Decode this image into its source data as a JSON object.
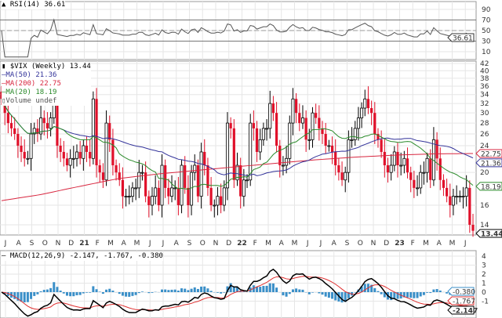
{
  "chart_data": [
    {
      "type": "line",
      "title": "RSI(14) 36.61",
      "indicator": "RSI(14)",
      "last_value": "36.61",
      "ylim": [
        0,
        100
      ],
      "y_ticks": [
        "90",
        "70",
        "50",
        "30",
        "10"
      ],
      "reference_lines": [
        70,
        30
      ],
      "grid": true
    },
    {
      "type": "candlestick",
      "title": "$VIX (Weekly) 13.44",
      "symbol": "$VIX (Weekly)",
      "last_value": "13.44",
      "y_scale": "log",
      "ylim": [
        13,
        42
      ],
      "y_ticks": [
        "42",
        "40",
        "38",
        "36",
        "34",
        "32",
        "30",
        "28",
        "26",
        "24",
        "20",
        "16",
        "14"
      ],
      "x_ticks": [
        "J",
        "A",
        "S",
        "O",
        "N",
        "D",
        "21",
        "F",
        "M",
        "A",
        "M",
        "J",
        "J",
        "A",
        "S",
        "O",
        "N",
        "D",
        "22",
        "F",
        "M",
        "A",
        "M",
        "J",
        "J",
        "A",
        "S",
        "O",
        "N",
        "D",
        "23",
        "F",
        "M",
        "A",
        "M",
        "J"
      ],
      "weekly_close": [
        33,
        30,
        28,
        27,
        26,
        24,
        23,
        22,
        22,
        26,
        27,
        26,
        29,
        28,
        27,
        29,
        38,
        24,
        23,
        22,
        21,
        22,
        22,
        23,
        22,
        24,
        23,
        22,
        33,
        21,
        20,
        19,
        28,
        25,
        21,
        20,
        19,
        17,
        17,
        17,
        18,
        18,
        20,
        20,
        17,
        16,
        17,
        18,
        16,
        21,
        18,
        17,
        18,
        18,
        16,
        21,
        18,
        16,
        20,
        21,
        17,
        23,
        21,
        18,
        16,
        16,
        17,
        16,
        18,
        28,
        27,
        19,
        21,
        17,
        19,
        19,
        28,
        27,
        23,
        25,
        27,
        27,
        32,
        30,
        24,
        21,
        21,
        22,
        28,
        33,
        30,
        28,
        29,
        25,
        25,
        30,
        29,
        27,
        26,
        24,
        24,
        23,
        21,
        20,
        19,
        20,
        25,
        25,
        27,
        29,
        31,
        33,
        31,
        30,
        26,
        25,
        23,
        21,
        20,
        21,
        23,
        21,
        21,
        22,
        20,
        19,
        18,
        18,
        20,
        20,
        22,
        19,
        25,
        22,
        19,
        18,
        17,
        16,
        17,
        17,
        17,
        17,
        18,
        14,
        13.44
      ],
      "ma200_path": [
        16.5,
        17.2,
        18.2,
        19.2,
        19.8,
        20.3,
        20.8,
        21.3,
        21.8,
        22.2,
        22.5,
        22.7,
        22.75
      ],
      "legend": [
        {
          "label": "MA(50) 21.36",
          "color": "#33339a",
          "value": "21.36"
        },
        {
          "label": "MA(200) 22.75",
          "color": "#d8263f",
          "value": "22.75"
        },
        {
          "label": "MA(20) 18.19",
          "color": "#2a8a2a",
          "value": "18.19"
        },
        {
          "label": "Volume undef",
          "color": "#777777"
        }
      ],
      "up_color": "#000000",
      "down_color": "#e0102a",
      "grid": true
    },
    {
      "type": "line",
      "title": "MACD(12,26,9) -2.147, -1.767, -0.380",
      "indicator": "MACD(12,26,9)",
      "values": {
        "macd": "-2.147",
        "signal": "-1.767",
        "histogram": "-0.380"
      },
      "y_ticks": [
        "4",
        "3",
        "2",
        "1",
        "0",
        "-1"
      ],
      "colors": {
        "macd": "#000000",
        "signal": "#e03030",
        "histogram": "#3a8fc8"
      },
      "grid": true
    }
  ]
}
